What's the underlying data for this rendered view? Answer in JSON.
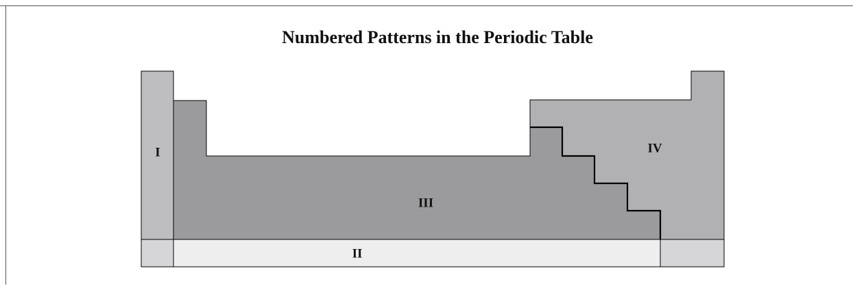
{
  "title": "Numbered Patterns in the Periodic Table",
  "regions": [
    {
      "label": "I"
    },
    {
      "label": "II"
    },
    {
      "label": "III"
    },
    {
      "label": "IV"
    }
  ]
}
